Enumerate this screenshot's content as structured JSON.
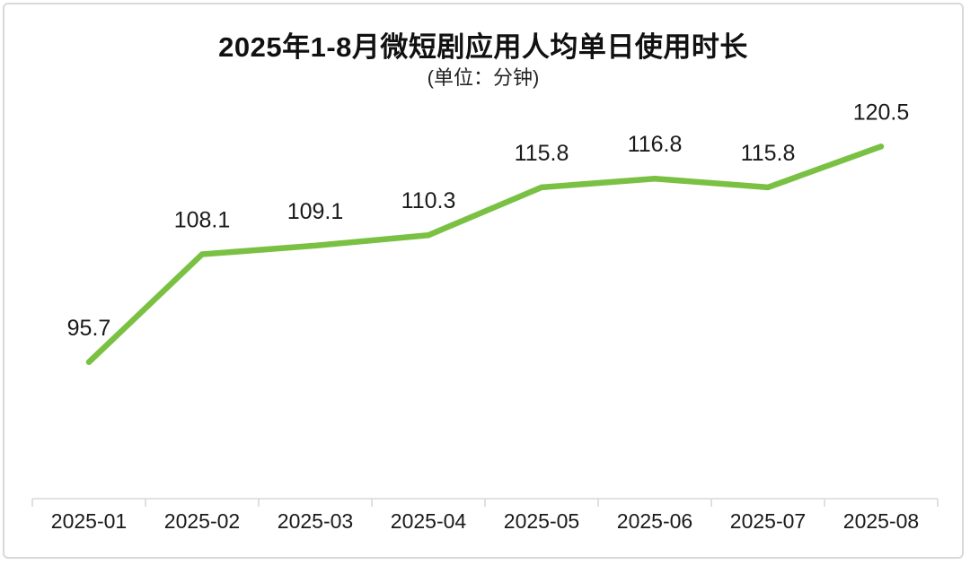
{
  "chart_data": {
    "type": "line",
    "title": "2025年1-8月微短剧应用人均单日使用时长",
    "subtitle": "(单位：分钟)",
    "categories": [
      "2025-01",
      "2025-02",
      "2025-03",
      "2025-04",
      "2025-05",
      "2025-06",
      "2025-07",
      "2025-08"
    ],
    "values": [
      95.7,
      108.1,
      109.1,
      110.3,
      115.8,
      116.8,
      115.8,
      120.5
    ],
    "xlabel": "",
    "ylabel": "",
    "ylim": [
      80,
      126
    ],
    "grid": false,
    "legend_position": "none",
    "markers": false,
    "data_labels_shown": true,
    "colors": {
      "line": "#7AC143",
      "axis": "#d9d9d9",
      "text": "#1a1a1a",
      "background": "#ffffff",
      "card_border": "#d9d9d9"
    }
  }
}
